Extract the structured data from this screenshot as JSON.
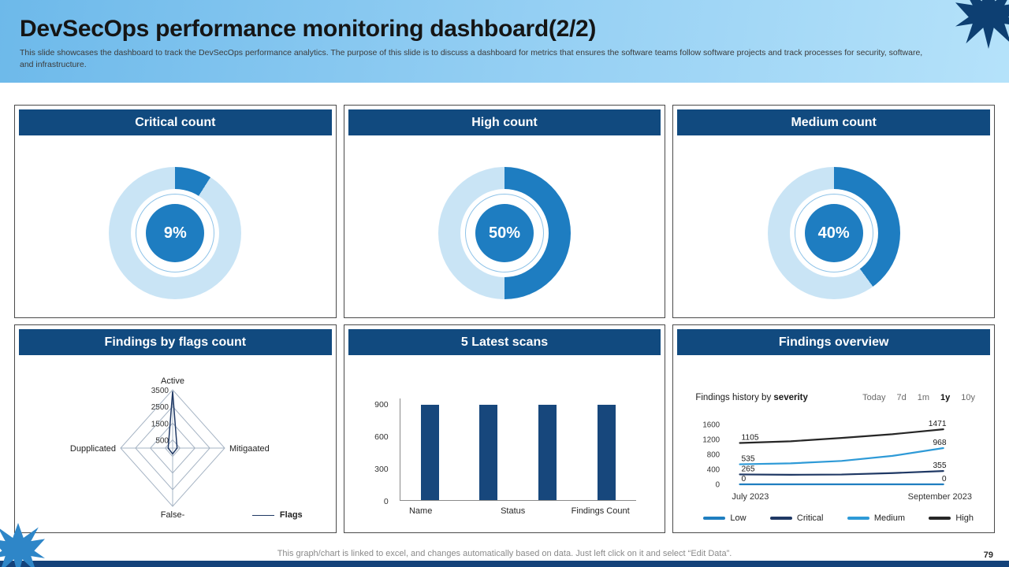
{
  "slide": {
    "title": "DevSecOps performance monitoring dashboard(2/2)",
    "subtitle": "This slide showcases the dashboard to track the DevSecOps performance analytics. The purpose of this slide is to discuss a dashboard for metrics that ensures the software teams follow software projects and track processes for security, software, and infrastructure.",
    "footer_note": "This graph/chart is linked to excel, and changes automatically based on data. Just left click on it and select “Edit Data”.",
    "page_number": "79"
  },
  "colors": {
    "accent_blue": "#1e7dc1",
    "light_ring": "#c9e4f5",
    "panel_header": "#114a7f",
    "bar_fill": "#17477c",
    "radar_navy": "#1f3864",
    "series_low": "#1f7ec0",
    "series_critical": "#1f3864",
    "series_medium": "#2e9ad7",
    "series_high": "#262626"
  },
  "chart_data": [
    {
      "type": "pie",
      "variant": "donut",
      "title": "Critical count",
      "value_pct": 9,
      "values": [
        9,
        91
      ],
      "center_label": "9%"
    },
    {
      "type": "pie",
      "variant": "donut",
      "title": "High count",
      "value_pct": 50,
      "values": [
        50,
        50
      ],
      "center_label": "50%"
    },
    {
      "type": "pie",
      "variant": "donut",
      "title": "Medium count",
      "value_pct": 40,
      "values": [
        40,
        60
      ],
      "center_label": "40%"
    },
    {
      "type": "radar",
      "title": "Findings by flags count",
      "categories": [
        "Active",
        "Mitigaated",
        "False-",
        "Dupplicated"
      ],
      "series": [
        {
          "name": "Flags",
          "values": [
            3400,
            300,
            350,
            300
          ]
        }
      ],
      "ticks": [
        500,
        1500,
        2500,
        3500
      ],
      "max": 3500
    },
    {
      "type": "bar",
      "title": "5 Latest scans",
      "categories": [
        "Name",
        "Status",
        "Findings Count"
      ],
      "values": [
        890,
        890,
        890,
        890
      ],
      "yticks": [
        0,
        300,
        600,
        900
      ],
      "ylim": [
        0,
        950
      ]
    },
    {
      "type": "line",
      "title": "Findings overview",
      "subtitle_prefix": "Findings history by ",
      "subtitle_bold": "severity",
      "ranges": [
        "Today",
        "7d",
        "1m",
        "1y",
        "10y"
      ],
      "active_range": "1y",
      "x_labels": [
        "July 2023",
        "September 2023"
      ],
      "yticks": [
        0,
        400,
        800,
        1200,
        1600
      ],
      "ylim": [
        0,
        1600
      ],
      "series": [
        {
          "name": "Low",
          "color_key": "series_low",
          "values": [
            0,
            0,
            0,
            0,
            0
          ],
          "start_label": "0",
          "end_label": "0"
        },
        {
          "name": "Critical",
          "color_key": "series_critical",
          "values": [
            265,
            255,
            262,
            300,
            355
          ],
          "start_label": "265",
          "end_label": "355"
        },
        {
          "name": "Medium",
          "color_key": "series_medium",
          "values": [
            535,
            560,
            625,
            760,
            968
          ],
          "start_label": "535",
          "end_label": "968"
        },
        {
          "name": "High",
          "color_key": "series_high",
          "values": [
            1105,
            1150,
            1240,
            1340,
            1471
          ],
          "start_label": "1105",
          "end_label": "1471"
        }
      ]
    }
  ]
}
